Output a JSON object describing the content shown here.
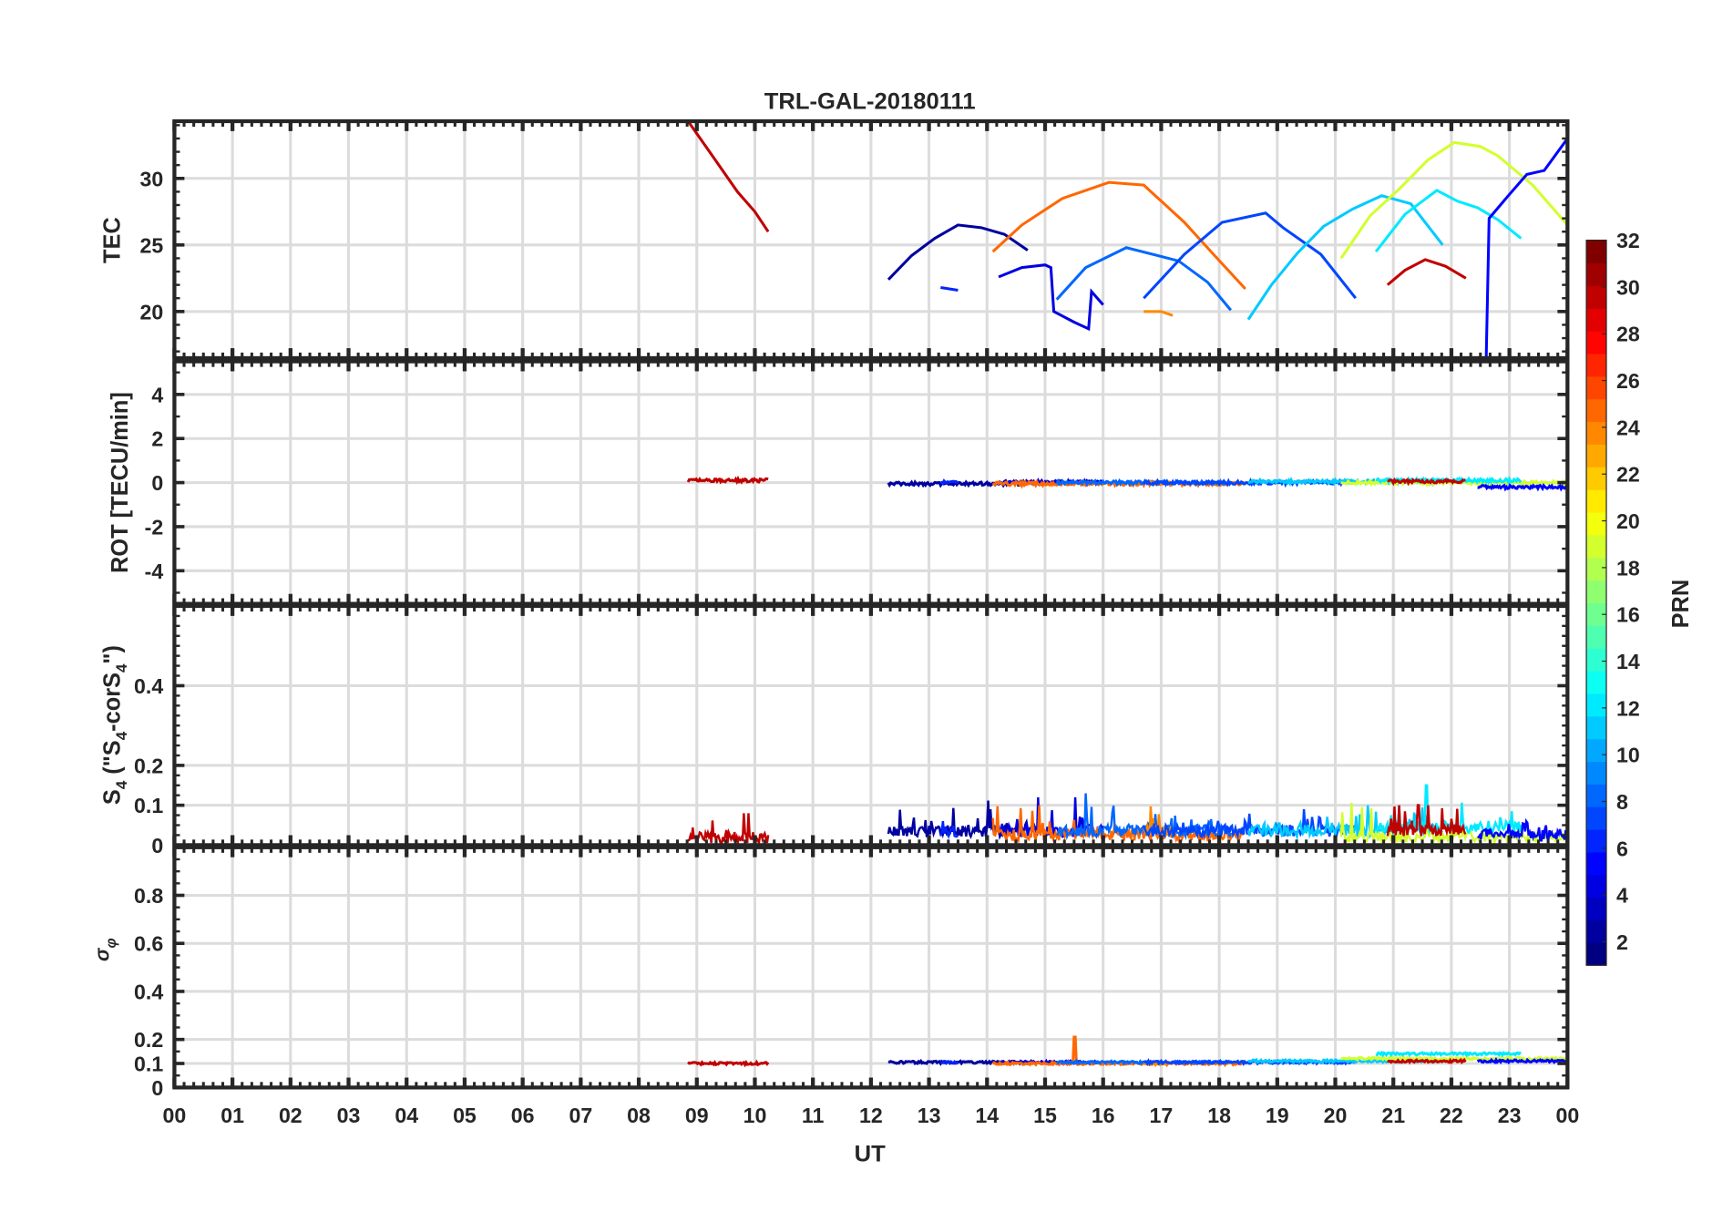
{
  "chart_data": {
    "type": "line",
    "title": "TRL-GAL-20180111",
    "xlabel": "UT",
    "x_tick_labels": [
      "00",
      "01",
      "02",
      "03",
      "04",
      "05",
      "06",
      "07",
      "08",
      "09",
      "10",
      "11",
      "12",
      "13",
      "14",
      "15",
      "16",
      "17",
      "18",
      "19",
      "20",
      "21",
      "22",
      "23",
      "00"
    ],
    "xlim_hours": [
      0,
      24
    ],
    "grid": true,
    "colorbar": {
      "label": "PRN",
      "range": [
        1,
        32
      ],
      "ticks": [
        "2",
        "4",
        "6",
        "8",
        "10",
        "12",
        "14",
        "16",
        "18",
        "20",
        "22",
        "24",
        "26",
        "28",
        "30",
        "32"
      ],
      "colormap": "jet",
      "levels": 32,
      "placement": "right"
    },
    "panels": [
      {
        "id": "tec",
        "ylabel": "TEC",
        "ylim": [
          16.5,
          34.3
        ],
        "yticks": [
          20,
          25,
          30
        ],
        "ytick_labels": [
          "20",
          "25",
          "30"
        ]
      },
      {
        "id": "rot",
        "ylabel": "ROT [TECU/min]",
        "ylim": [
          -5.5,
          5.5
        ],
        "yticks": [
          -4,
          -2,
          0,
          2,
          4
        ],
        "ytick_labels": [
          "-4",
          "-2",
          "0",
          "2",
          "4"
        ]
      },
      {
        "id": "s4",
        "ylabel": "S4 (\"S4-corS4\")",
        "ylim": [
          0,
          0.6
        ],
        "yticks": [
          0,
          0.1,
          0.2,
          0.4
        ],
        "ytick_labels": [
          "0",
          "0.1",
          "0.2",
          "0.4"
        ]
      },
      {
        "id": "sigma",
        "ylabel": "σφ",
        "ylim": [
          0,
          1
        ],
        "yticks": [
          0,
          0.1,
          0.2,
          0.4,
          0.6,
          0.8
        ],
        "ytick_labels": [
          "0",
          "0.1",
          "0.2",
          "0.4",
          "0.6",
          "0.8"
        ]
      }
    ],
    "series": [
      {
        "prn": 30,
        "tec": [
          [
            8.85,
            34.3
          ],
          [
            9.3,
            31.5
          ],
          [
            9.7,
            29
          ],
          [
            10.0,
            27.5
          ],
          [
            10.23,
            26.0
          ]
        ],
        "rot": 0.1,
        "s4": {
          "base": 0.012,
          "peak": 0.08,
          "peak_at": 9.9
        },
        "sigma": 0.1
      },
      {
        "prn": 2,
        "tec": [
          [
            12.3,
            22.4
          ],
          [
            12.7,
            24.2
          ],
          [
            13.1,
            25.5
          ],
          [
            13.5,
            26.5
          ],
          [
            13.9,
            26.3
          ],
          [
            14.3,
            25.8
          ],
          [
            14.7,
            24.6
          ]
        ],
        "rot": -0.05,
        "s4": {
          "base": 0.03,
          "peak": 0.13,
          "peak_at": 13.4
        },
        "sigma": 0.105
      },
      {
        "prn": 4,
        "tec": [
          [
            14.2,
            22.6
          ],
          [
            14.6,
            23.3
          ],
          [
            15.0,
            23.5
          ],
          [
            15.1,
            23.3
          ],
          [
            15.15,
            20.0
          ],
          [
            15.5,
            19.2
          ],
          [
            15.75,
            18.7
          ],
          [
            15.8,
            21.5
          ],
          [
            16.0,
            20.5
          ]
        ],
        "rot": 0.02,
        "s4": {
          "base": 0.03,
          "peak": 0.12,
          "peak_at": 15.0
        },
        "sigma": 0.105
      },
      {
        "prn": 6,
        "tec": [
          [
            13.2,
            21.8
          ],
          [
            13.5,
            21.6
          ]
        ],
        "rot": 0.0,
        "s4": {
          "base": 0.03,
          "peak": 0.06,
          "peak_at": 13.3
        },
        "sigma": 0.105
      },
      {
        "prn": 25,
        "tec": [
          [
            14.1,
            24.5
          ],
          [
            14.6,
            26.5
          ],
          [
            15.3,
            28.5
          ],
          [
            16.1,
            29.7
          ],
          [
            16.7,
            29.5
          ],
          [
            17.4,
            26.7
          ],
          [
            17.9,
            24.3
          ],
          [
            18.45,
            21.7
          ]
        ],
        "rot": -0.05,
        "s4": {
          "base": 0.02,
          "peak": 0.1,
          "peak_at": 14.3
        },
        "sigma": 0.1,
        "sigma_spike": {
          "at": 15.5,
          "value": 0.21
        }
      },
      {
        "prn": 8,
        "tec": [
          [
            15.2,
            20.9
          ],
          [
            15.7,
            23.3
          ],
          [
            16.4,
            24.8
          ],
          [
            17.3,
            23.8
          ],
          [
            17.8,
            22.2
          ],
          [
            18.2,
            20.1
          ]
        ],
        "rot": 0.0,
        "s4": {
          "base": 0.03,
          "peak": 0.13,
          "peak_at": 16.0
        },
        "sigma": 0.105
      },
      {
        "prn": 24,
        "tec": [
          [
            16.7,
            20.0
          ],
          [
            17.0,
            20.0
          ],
          [
            17.2,
            19.7
          ]
        ],
        "rot": 0.0,
        "s4": {
          "base": 0.03,
          "peak": 0.12,
          "peak_at": 17.0
        },
        "sigma": 0.1
      },
      {
        "prn": 7,
        "tec": [
          [
            16.7,
            21.0
          ],
          [
            17.4,
            24.3
          ],
          [
            18.05,
            26.7
          ],
          [
            18.8,
            27.4
          ],
          [
            19.1,
            26.3
          ],
          [
            19.75,
            24.3
          ],
          [
            20.35,
            21.0
          ]
        ],
        "rot": 0.0,
        "s4": {
          "base": 0.03,
          "peak": 0.09,
          "peak_at": 19.2
        },
        "sigma": 0.105
      },
      {
        "prn": 11,
        "tec": [
          [
            18.5,
            19.4
          ],
          [
            18.9,
            22.0
          ],
          [
            19.35,
            24.4
          ],
          [
            19.8,
            26.4
          ],
          [
            20.3,
            27.7
          ],
          [
            20.8,
            28.7
          ],
          [
            21.3,
            28.1
          ],
          [
            21.85,
            25.0
          ]
        ],
        "rot": 0.05,
        "s4": {
          "base": 0.03,
          "peak": 0.1,
          "peak_at": 20.8
        },
        "sigma": 0.11
      },
      {
        "prn": 19,
        "tec": [
          [
            20.1,
            24.0
          ],
          [
            20.6,
            27.2
          ],
          [
            21.1,
            29.2
          ],
          [
            21.6,
            31.4
          ],
          [
            22.05,
            32.7
          ],
          [
            22.5,
            32.4
          ],
          [
            22.8,
            31.7
          ],
          [
            23.4,
            29.5
          ],
          [
            24.0,
            26.5
          ]
        ],
        "rot": 0.0,
        "s4": {
          "base": 0.015,
          "peak": 0.11,
          "peak_at": 20.2
        },
        "sigma": 0.12
      },
      {
        "prn": 12,
        "tec": [
          [
            20.7,
            24.5
          ],
          [
            21.2,
            27.3
          ],
          [
            21.75,
            29.1
          ],
          [
            22.1,
            28.3
          ],
          [
            22.45,
            27.8
          ],
          [
            22.8,
            26.9
          ],
          [
            23.2,
            25.5
          ]
        ],
        "rot": 0.1,
        "s4": {
          "base": 0.04,
          "peak": 0.15,
          "peak_at": 21.7
        },
        "sigma": 0.14
      },
      {
        "prn": 30,
        "tec": [
          [
            20.9,
            22.0
          ],
          [
            21.2,
            23.1
          ],
          [
            21.55,
            23.9
          ],
          [
            21.9,
            23.4
          ],
          [
            22.25,
            22.5
          ]
        ],
        "rot": 0.05,
        "s4": {
          "base": 0.03,
          "peak": 0.1,
          "peak_at": 21.4
        },
        "sigma": 0.11
      },
      {
        "prn": 5,
        "tec": [
          [
            22.45,
            16.5
          ],
          [
            22.6,
            16.5
          ],
          [
            22.65,
            27.0
          ],
          [
            23.0,
            28.8
          ],
          [
            23.3,
            30.3
          ],
          [
            23.6,
            30.6
          ],
          [
            24.0,
            33.0
          ]
        ],
        "rot": -0.2,
        "s4": {
          "base": 0.02,
          "peak": 0.06,
          "peak_at": 23.1
        },
        "sigma": 0.11
      }
    ]
  }
}
